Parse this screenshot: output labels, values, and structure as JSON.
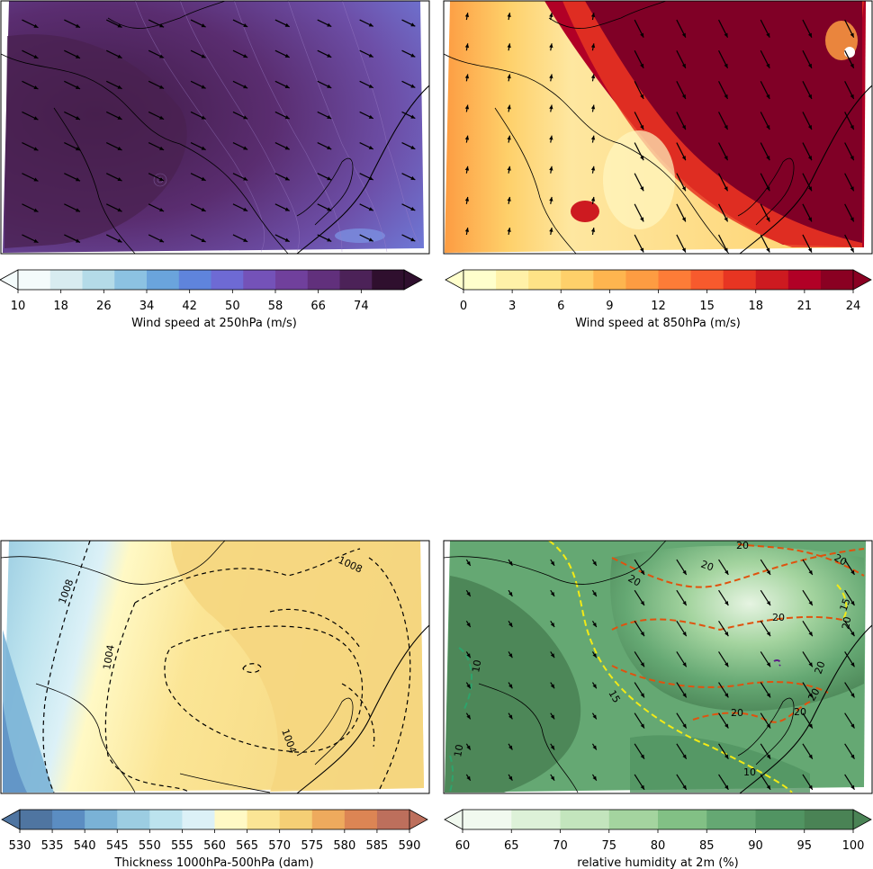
{
  "colors": {
    "frame": "#000000",
    "coast": "#000000"
  },
  "chart_data": [
    {
      "type": "heatmap",
      "title": "",
      "variable": "Wind speed at 250hPa (m/s)",
      "colorbar": {
        "label": "Wind speed at 250hPa (m/s)",
        "ticks": [
          "10",
          "18",
          "26",
          "34",
          "42",
          "50",
          "58",
          "66",
          "74"
        ],
        "range": [
          10,
          82
        ],
        "extend": "both",
        "colors": [
          "#f4fbfb",
          "#d8ecf0",
          "#b4dbe8",
          "#8cc2e2",
          "#6aa4dc",
          "#5f84dc",
          "#6e6ad4",
          "#7452b8",
          "#70409c",
          "#61307c",
          "#4c2258",
          "#2f0f2e"
        ]
      },
      "field_colors": {
        "strong": "#4a2150",
        "mid": "#6a3d8a",
        "weak": "#6e73d6"
      },
      "overlays": [
        "wind vectors (arrows)",
        "speed contour lines",
        "coastline",
        "borders"
      ]
    },
    {
      "type": "heatmap",
      "title": "",
      "variable": "Wind speed at 850hPa (m/s)",
      "colorbar": {
        "label": "Wind speed at 850hPa (m/s)",
        "ticks": [
          "0",
          "3",
          "6",
          "9",
          "12",
          "15",
          "18",
          "21",
          "24"
        ],
        "range": [
          0,
          24
        ],
        "extend": "both",
        "colors": [
          "#ffffcc",
          "#fff1a8",
          "#fee387",
          "#fed06a",
          "#feb54f",
          "#fd9c42",
          "#fd7c37",
          "#f75a2d",
          "#e73522",
          "#cd1a20",
          "#b10026",
          "#8a0022"
        ]
      },
      "field_colors": {
        "strong": "#800026",
        "mid": "#e8412a",
        "weak": "#fbc15e"
      },
      "overlays": [
        "wind vectors (arrows)",
        "coastline",
        "borders"
      ]
    },
    {
      "type": "heatmap",
      "title": "",
      "variable": "Thickness 1000hPa-500hPa (dam)",
      "colorbar": {
        "label": "Thickness 1000hPa-500hPa (dam)",
        "ticks": [
          "530",
          "535",
          "540",
          "545",
          "550",
          "555",
          "560",
          "565",
          "570",
          "575",
          "580",
          "585",
          "590"
        ],
        "range": [
          530,
          590
        ],
        "extend": "both",
        "colors": [
          "#4f75a1",
          "#5b8dc2",
          "#7ab2d6",
          "#9ccde2",
          "#bce3ee",
          "#dcf1f7",
          "#fff9c5",
          "#fbe595",
          "#f5cf75",
          "#eeaa5d",
          "#dc8554",
          "#bd6f5c"
        ]
      },
      "contour_labels": [
        "1008",
        "1008",
        "1004",
        "1004"
      ],
      "overlays": [
        "sea level pressure dashed contours (hPa)",
        "coastline",
        "borders"
      ]
    },
    {
      "type": "heatmap",
      "title": "",
      "variable": "relative humidity at 2m (%)",
      "colorbar": {
        "label": "relative humidity at 2m (%)",
        "ticks": [
          "60",
          "65",
          "70",
          "75",
          "80",
          "85",
          "90",
          "95",
          "100"
        ],
        "range": [
          60,
          100
        ],
        "extend": "both",
        "colors": [
          "#f1f9ef",
          "#ddf1d8",
          "#c3e5bd",
          "#a4d49f",
          "#82c085",
          "#65a873",
          "#519462",
          "#4a8355"
        ]
      },
      "contour_labels": [
        "20",
        "20",
        "20",
        "20",
        "20",
        "20",
        "20",
        "20",
        "20",
        "15",
        "15",
        "10",
        "10",
        "10",
        "20"
      ],
      "overlays": [
        "10 m wind vectors",
        "wind speed dashed contours (orange 20, yellow 15, green 10)",
        "coastline",
        "borders"
      ]
    }
  ]
}
